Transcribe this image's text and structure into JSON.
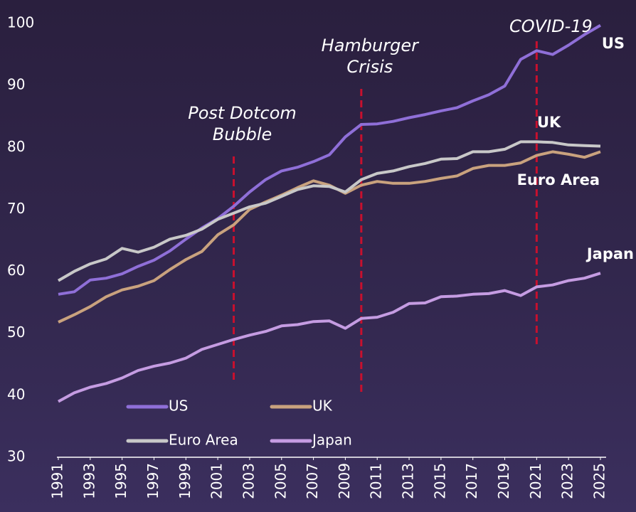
{
  "chart_data": {
    "type": "line",
    "x": [
      1991,
      1992,
      1993,
      1994,
      1995,
      1996,
      1997,
      1998,
      1999,
      2000,
      2001,
      2002,
      2003,
      2004,
      2005,
      2006,
      2007,
      2008,
      2009,
      2010,
      2011,
      2012,
      2013,
      2014,
      2015,
      2016,
      2017,
      2018,
      2019,
      2020,
      2021,
      2022,
      2023,
      2024,
      2025
    ],
    "xlim": [
      1991,
      2025
    ],
    "xticks": [
      1991,
      1993,
      1995,
      1997,
      1999,
      2001,
      2003,
      2005,
      2007,
      2009,
      2011,
      2013,
      2015,
      2017,
      2019,
      2021,
      2023,
      2025
    ],
    "ylim": [
      30,
      100
    ],
    "yticks": [
      30,
      40,
      50,
      60,
      70,
      80,
      90,
      100
    ],
    "grid": false,
    "series": [
      {
        "name": "US",
        "color": "#8f6fd8",
        "values": [
          56.3,
          56.7,
          58.6,
          58.9,
          59.6,
          60.8,
          61.8,
          63.3,
          65.2,
          67.0,
          68.5,
          70.5,
          72.8,
          74.8,
          76.2,
          76.8,
          77.7,
          78.8,
          81.7,
          83.7,
          83.8,
          84.2,
          84.8,
          85.3,
          85.9,
          86.4,
          87.5,
          88.5,
          89.9,
          94.2,
          95.6,
          95.0,
          96.5,
          98.2,
          99.7
        ]
      },
      {
        "name": "UK",
        "color": "#c9a27e",
        "values": [
          51.8,
          53.0,
          54.3,
          55.9,
          57.0,
          57.6,
          58.5,
          60.3,
          61.9,
          63.2,
          65.9,
          67.5,
          70.0,
          71.2,
          72.3,
          73.5,
          74.6,
          73.9,
          72.6,
          73.9,
          74.5,
          74.2,
          74.2,
          74.5,
          75.0,
          75.4,
          76.6,
          77.1,
          77.1,
          77.5,
          78.7,
          79.3,
          78.9,
          78.4,
          79.3
        ]
      },
      {
        "name": "Euro Area",
        "color": "#c8c8c8",
        "values": [
          58.5,
          60.0,
          61.2,
          62.0,
          63.7,
          63.1,
          63.9,
          65.2,
          65.8,
          66.8,
          68.4,
          69.4,
          70.4,
          71.0,
          72.1,
          73.2,
          73.8,
          73.7,
          72.8,
          74.8,
          75.8,
          76.2,
          76.9,
          77.4,
          78.1,
          78.2,
          79.3,
          79.3,
          79.7,
          80.9,
          80.9,
          80.8,
          80.4,
          80.3,
          80.2
        ]
      },
      {
        "name": "Japan",
        "color": "#c59ce2",
        "values": [
          39.0,
          40.4,
          41.3,
          41.9,
          42.8,
          44.0,
          44.7,
          45.2,
          46.0,
          47.4,
          48.2,
          49.0,
          49.7,
          50.3,
          51.2,
          51.4,
          51.9,
          52.0,
          50.8,
          52.4,
          52.6,
          53.4,
          54.8,
          54.9,
          55.9,
          56.0,
          56.3,
          56.4,
          56.9,
          56.1,
          57.5,
          57.8,
          58.5,
          58.9,
          59.7
        ]
      }
    ],
    "annotations": [
      {
        "x": 2002,
        "text": [
          "Post Dotcom",
          "Bubble"
        ]
      },
      {
        "x": 2010,
        "text": [
          "Hamburger",
          "Crisis"
        ]
      },
      {
        "x": 2021,
        "text": [
          "COVID-19"
        ]
      }
    ],
    "annotation_color": "#c8102e"
  }
}
